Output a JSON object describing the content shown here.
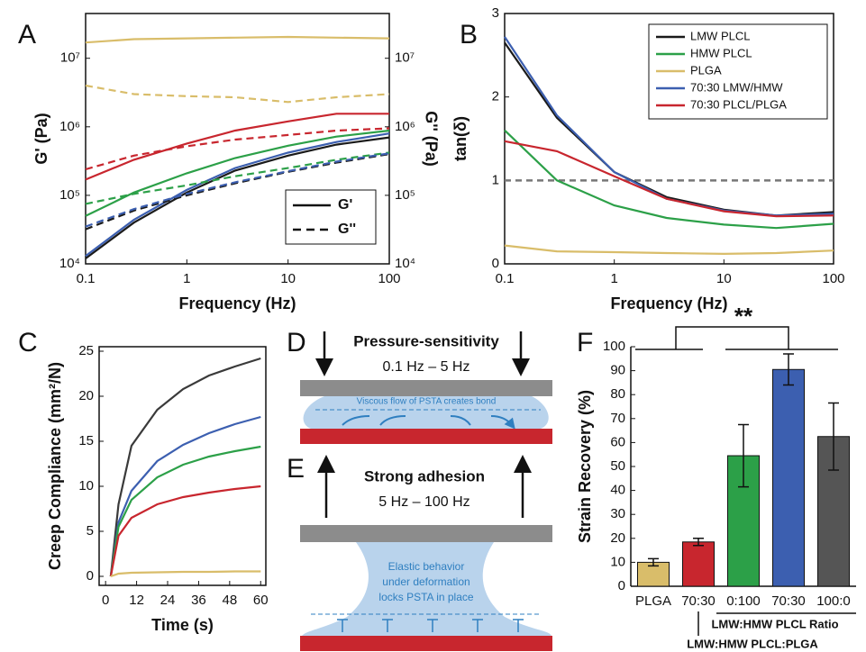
{
  "chart_data": [
    {
      "type": "line",
      "panel": "A",
      "xscale": "log",
      "yscale": "log",
      "xlabel": "Frequency (Hz)",
      "ylabel": "G' (Pa)",
      "y2label": "G'' (Pa)",
      "x": [
        0.1,
        0.3,
        1,
        3,
        10,
        30,
        100
      ],
      "xlim": [
        0.1,
        100
      ],
      "xticks": [
        0.1,
        1,
        10,
        100
      ],
      "ylim": [
        10000,
        45000000
      ],
      "yticks": [
        {
          "value": 10000,
          "label": "10⁴"
        },
        {
          "value": 100000,
          "label": "10⁵"
        },
        {
          "value": 1000000,
          "label": "10⁶"
        },
        {
          "value": 10000000,
          "label": "10⁷"
        }
      ],
      "y2lim": [
        10000,
        45000000
      ],
      "y2ticks": [
        {
          "value": 10000,
          "label": "10⁴"
        },
        {
          "value": 100000,
          "label": "10⁵"
        },
        {
          "value": 1000000,
          "label": "10⁶"
        },
        {
          "value": 10000000,
          "label": "10⁷"
        }
      ],
      "style_legend": [
        {
          "name": "G'",
          "dashed": false
        },
        {
          "name": "G''",
          "dashed": true
        }
      ],
      "series": [
        {
          "color": "#1a1a1a",
          "dashed": false,
          "values": [
            12000,
            40000,
            110000,
            230000,
            380000,
            550000,
            700000
          ]
        },
        {
          "color": "#2ca048",
          "dashed": false,
          "values": [
            50000,
            110000,
            210000,
            350000,
            530000,
            720000,
            880000
          ]
        },
        {
          "color": "#d9bd6a",
          "dashed": false,
          "values": [
            17000000,
            19000000,
            19500000,
            20000000,
            20500000,
            20000000,
            19500000
          ]
        },
        {
          "color": "#3c5fb0",
          "dashed": false,
          "values": [
            13000,
            44000,
            120000,
            250000,
            420000,
            600000,
            800000
          ]
        },
        {
          "color": "#c8262e",
          "dashed": false,
          "values": [
            170000,
            330000,
            570000,
            880000,
            1200000,
            1550000,
            1550000
          ]
        },
        {
          "color": "#1a1a1a",
          "dashed": true,
          "axis": "y2",
          "values": [
            32000,
            60000,
            100000,
            150000,
            220000,
            300000,
            400000
          ]
        },
        {
          "color": "#2ca048",
          "dashed": true,
          "axis": "y2",
          "values": [
            75000,
            105000,
            140000,
            190000,
            250000,
            330000,
            420000
          ]
        },
        {
          "color": "#d9bd6a",
          "dashed": true,
          "axis": "y2",
          "values": [
            4000000,
            3000000,
            2800000,
            2700000,
            2300000,
            2700000,
            3000000
          ]
        },
        {
          "color": "#3c5fb0",
          "dashed": true,
          "axis": "y2",
          "values": [
            35000,
            63000,
            105000,
            155000,
            225000,
            310000,
            410000
          ]
        },
        {
          "color": "#c8262e",
          "dashed": true,
          "axis": "y2",
          "values": [
            240000,
            380000,
            520000,
            650000,
            760000,
            880000,
            950000
          ]
        }
      ]
    },
    {
      "type": "line",
      "panel": "B",
      "xscale": "log",
      "xlabel": "Frequency (Hz)",
      "ylabel": "tan(δ)",
      "x": [
        0.1,
        0.3,
        1,
        3,
        10,
        30,
        100
      ],
      "xlim": [
        0.1,
        100
      ],
      "xticks": [
        0.1,
        1,
        10,
        100
      ],
      "ylim": [
        0,
        3
      ],
      "yticks": [
        0,
        1,
        2,
        3
      ],
      "refline": 1,
      "legend": "top-right",
      "series": [
        {
          "name": "LMW PLCL",
          "color": "#1a1a1a",
          "values": [
            2.65,
            1.75,
            1.1,
            0.8,
            0.65,
            0.58,
            0.62
          ]
        },
        {
          "name": "HMW PLCL",
          "color": "#2ca048",
          "values": [
            1.6,
            1.0,
            0.7,
            0.55,
            0.47,
            0.43,
            0.48
          ]
        },
        {
          "name": "PLGA",
          "color": "#d9bd6a",
          "values": [
            0.22,
            0.15,
            0.14,
            0.13,
            0.12,
            0.13,
            0.16
          ]
        },
        {
          "name": "70:30 LMW/HMW",
          "color": "#3c5fb0",
          "values": [
            2.72,
            1.78,
            1.1,
            0.78,
            0.64,
            0.58,
            0.6
          ]
        },
        {
          "name": "70:30 PLCL/PLGA",
          "color": "#c8262e",
          "values": [
            1.47,
            1.35,
            1.05,
            0.78,
            0.63,
            0.57,
            0.58
          ]
        }
      ]
    },
    {
      "type": "line",
      "panel": "C",
      "xlabel": "Time (s)",
      "ylabel": "Creep Compliance (mm²/N)",
      "x": [
        2,
        5,
        10,
        20,
        30,
        40,
        50,
        60
      ],
      "xlim": [
        -2.5,
        62
      ],
      "xticks": [
        0,
        12,
        24,
        36,
        48,
        60
      ],
      "ylim": [
        -1,
        25.5
      ],
      "yticks": [
        0,
        5,
        10,
        15,
        20,
        25
      ],
      "series": [
        {
          "color": "#3a3a3a",
          "values": [
            0,
            8,
            14.5,
            18.5,
            20.8,
            22.3,
            23.3,
            24.2
          ]
        },
        {
          "color": "#3c5fb0",
          "values": [
            0,
            6,
            9.5,
            12.8,
            14.6,
            15.9,
            16.9,
            17.7
          ]
        },
        {
          "color": "#2ca048",
          "values": [
            0,
            5.5,
            8.5,
            11,
            12.4,
            13.3,
            13.9,
            14.4
          ]
        },
        {
          "color": "#c8262e",
          "values": [
            0,
            4.5,
            6.5,
            8,
            8.8,
            9.3,
            9.7,
            10.0
          ]
        },
        {
          "color": "#d9bd6a",
          "values": [
            0,
            0.3,
            0.4,
            0.45,
            0.5,
            0.5,
            0.55,
            0.55
          ]
        }
      ]
    },
    {
      "type": "bar",
      "panel": "F",
      "ylabel": "Strain Recovery (%)",
      "categories": [
        "PLGA",
        "70:30",
        "0:100",
        "70:30",
        "100:0"
      ],
      "values": [
        10,
        18.5,
        54.5,
        90.5,
        62.5
      ],
      "errors": [
        1.5,
        1.5,
        13,
        6.5,
        14
      ],
      "colors": [
        "#d9bd6a",
        "#c8262e",
        "#2ca048",
        "#3c5fb0",
        "#555555"
      ],
      "ylim": [
        0,
        100
      ],
      "yticks": [
        0,
        10,
        20,
        30,
        40,
        50,
        60,
        70,
        80,
        90,
        100
      ],
      "annotation": "**",
      "group_labels": [
        "LMW:HMW PLCL Ratio",
        "LMW:HMW PLCL:PLGA"
      ]
    }
  ],
  "diagram": {
    "D": {
      "panel": "D",
      "title": "Pressure-sensitivity",
      "range": "0.1 Hz – 5 Hz",
      "note": "Viscous flow of PSTA creates bond"
    },
    "E": {
      "panel": "E",
      "title": "Strong adhesion",
      "range": "5 Hz – 100 Hz",
      "note": [
        "Elastic behavior",
        "under deformation",
        "locks PSTA in place"
      ]
    }
  }
}
